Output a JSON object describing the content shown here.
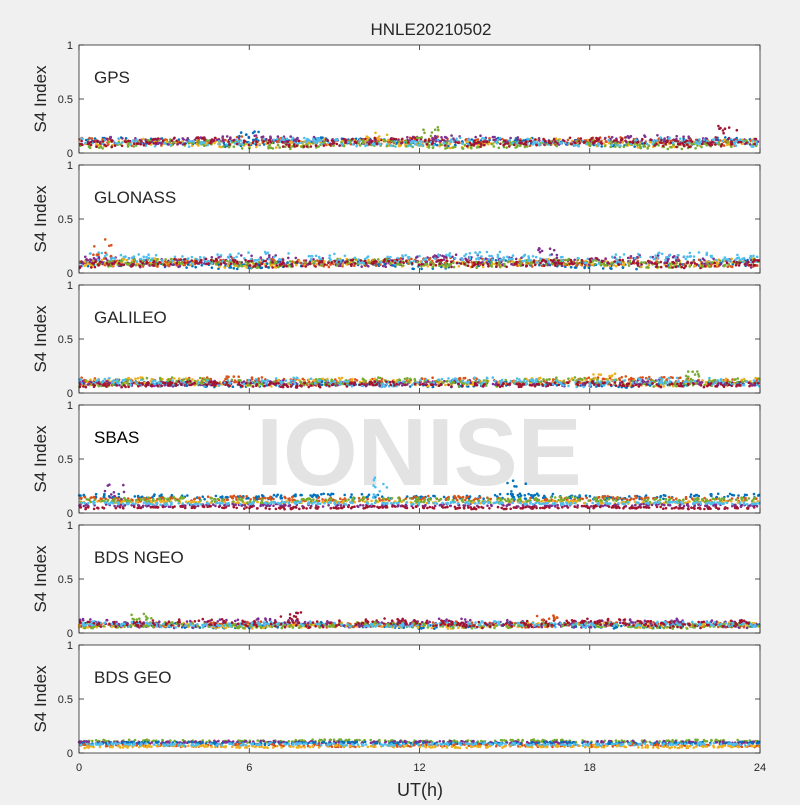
{
  "figure": {
    "title": "HNLE20210502",
    "xlabel": "UT(h)",
    "watermark": "IONISE",
    "background": "#f0f0f0"
  },
  "chart_data": {
    "type": "scatter",
    "title": "HNLE20210502",
    "xlabel": "UT(h)",
    "ylabel": "S4 Index",
    "xlim": [
      0,
      24
    ],
    "ylim": [
      0,
      1
    ],
    "xticks": [
      0,
      6,
      12,
      18,
      24
    ],
    "yticks": [
      0,
      0.5,
      1
    ],
    "ytick_labels": [
      "0",
      "0.5",
      "1"
    ],
    "grid": false,
    "colors": [
      "#0072BD",
      "#D95319",
      "#EDB120",
      "#7E2F8E",
      "#77AC30",
      "#4DBEEE",
      "#A2142F"
    ],
    "panels": [
      {
        "name": "GPS",
        "bands": [
          {
            "color": "#0072BD",
            "level": 0.1,
            "spread": 0.03
          },
          {
            "color": "#D95319",
            "level": 0.11,
            "spread": 0.03
          },
          {
            "color": "#EDB120",
            "level": 0.09,
            "spread": 0.03
          },
          {
            "color": "#7E2F8E",
            "level": 0.12,
            "spread": 0.03
          },
          {
            "color": "#77AC30",
            "level": 0.08,
            "spread": 0.03
          },
          {
            "color": "#4DBEEE",
            "level": 0.1,
            "spread": 0.03
          },
          {
            "color": "#A2142F",
            "level": 0.1,
            "spread": 0.03
          }
        ],
        "peaks": [
          {
            "x": 6.0,
            "y": 0.2
          },
          {
            "x": 10.5,
            "y": 0.2
          },
          {
            "x": 12.3,
            "y": 0.25
          },
          {
            "x": 22.8,
            "y": 0.27
          }
        ]
      },
      {
        "name": "GLONASS",
        "bands": [
          {
            "color": "#0072BD",
            "level": 0.08,
            "spread": 0.03
          },
          {
            "color": "#D95319",
            "level": 0.1,
            "spread": 0.03
          },
          {
            "color": "#EDB120",
            "level": 0.09,
            "spread": 0.03
          },
          {
            "color": "#7E2F8E",
            "level": 0.11,
            "spread": 0.04
          },
          {
            "color": "#77AC30",
            "level": 0.09,
            "spread": 0.03
          },
          {
            "color": "#4DBEEE",
            "level": 0.14,
            "spread": 0.04
          },
          {
            "color": "#A2142F",
            "level": 0.09,
            "spread": 0.03
          }
        ],
        "peaks": [
          {
            "x": 0.8,
            "y": 0.33
          },
          {
            "x": 16.5,
            "y": 0.24
          }
        ]
      },
      {
        "name": "GALILEO",
        "bands": [
          {
            "color": "#0072BD",
            "level": 0.08,
            "spread": 0.02
          },
          {
            "color": "#D95319",
            "level": 0.11,
            "spread": 0.03
          },
          {
            "color": "#EDB120",
            "level": 0.1,
            "spread": 0.03
          },
          {
            "color": "#7E2F8E",
            "level": 0.09,
            "spread": 0.02
          },
          {
            "color": "#77AC30",
            "level": 0.1,
            "spread": 0.03
          },
          {
            "color": "#4DBEEE",
            "level": 0.1,
            "spread": 0.03
          },
          {
            "color": "#A2142F",
            "level": 0.08,
            "spread": 0.02
          }
        ],
        "peaks": [
          {
            "x": 18.5,
            "y": 0.18
          },
          {
            "x": 21.5,
            "y": 0.2
          }
        ]
      },
      {
        "name": "SBAS",
        "bands": [
          {
            "color": "#0072BD",
            "level": 0.15,
            "spread": 0.02
          },
          {
            "color": "#D95319",
            "level": 0.13,
            "spread": 0.02
          },
          {
            "color": "#EDB120",
            "level": 0.1,
            "spread": 0.01
          },
          {
            "color": "#7E2F8E",
            "level": 0.07,
            "spread": 0.01
          },
          {
            "color": "#77AC30",
            "level": 0.12,
            "spread": 0.02
          },
          {
            "color": "#4DBEEE",
            "level": 0.09,
            "spread": 0.01
          },
          {
            "color": "#A2142F",
            "level": 0.05,
            "spread": 0.01
          }
        ],
        "peaks": [
          {
            "x": 1.2,
            "y": 0.28
          },
          {
            "x": 10.6,
            "y": 0.35
          },
          {
            "x": 15.5,
            "y": 0.32
          }
        ]
      },
      {
        "name": "BDS NGEO",
        "bands": [
          {
            "color": "#0072BD",
            "level": 0.07,
            "spread": 0.02
          },
          {
            "color": "#D95319",
            "level": 0.08,
            "spread": 0.02
          },
          {
            "color": "#EDB120",
            "level": 0.07,
            "spread": 0.02
          },
          {
            "color": "#7E2F8E",
            "level": 0.09,
            "spread": 0.03
          },
          {
            "color": "#77AC30",
            "level": 0.07,
            "spread": 0.02
          },
          {
            "color": "#4DBEEE",
            "level": 0.08,
            "spread": 0.02
          },
          {
            "color": "#A2142F",
            "level": 0.09,
            "spread": 0.03
          }
        ],
        "peaks": [
          {
            "x": 2.2,
            "y": 0.22
          },
          {
            "x": 7.5,
            "y": 0.2
          },
          {
            "x": 16.5,
            "y": 0.17
          }
        ]
      },
      {
        "name": "BDS GEO",
        "bands": [
          {
            "color": "#77AC30",
            "level": 0.11,
            "spread": 0.01
          },
          {
            "color": "#7E2F8E",
            "level": 0.1,
            "spread": 0.01
          },
          {
            "color": "#0072BD",
            "level": 0.09,
            "spread": 0.01
          },
          {
            "color": "#D95319",
            "level": 0.07,
            "spread": 0.01
          },
          {
            "color": "#EDB120",
            "level": 0.06,
            "spread": 0.01
          },
          {
            "color": "#4DBEEE",
            "level": 0.08,
            "spread": 0.01
          }
        ],
        "peaks": []
      }
    ]
  }
}
